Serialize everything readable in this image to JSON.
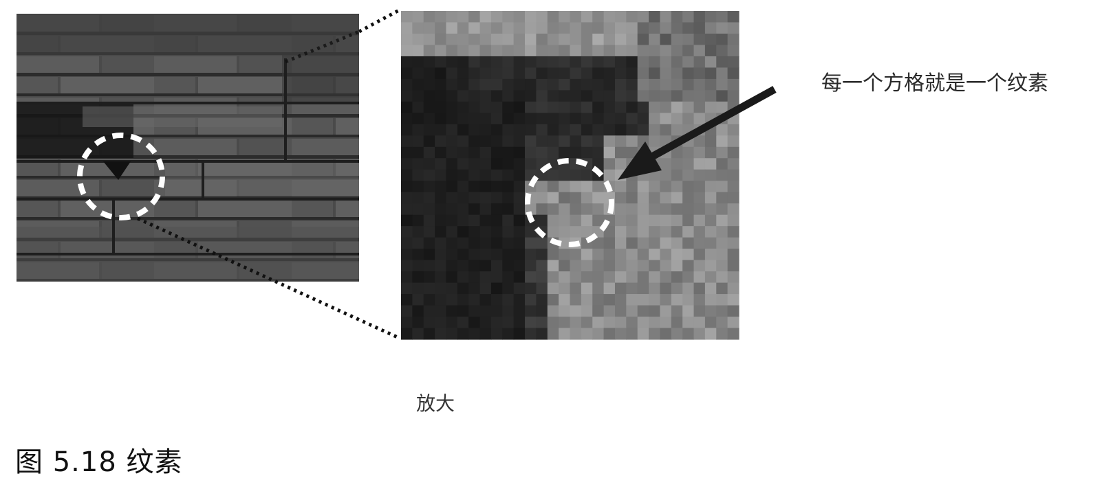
{
  "figure": {
    "caption": "图 5.18  纹素",
    "annotation": "每一个方格就是一个纹素",
    "zoom_label": "放大"
  },
  "colors": {
    "background": "#ffffff",
    "dotted_line": "#111111",
    "circle": "#ffffff",
    "arrow": "#1a1a1a"
  }
}
